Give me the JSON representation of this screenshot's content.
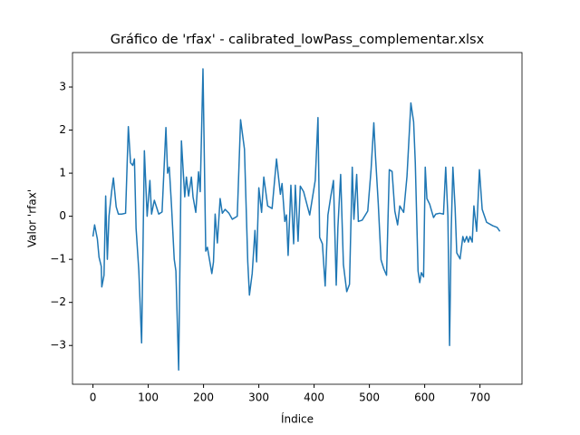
{
  "chart_data": {
    "type": "line",
    "title": "Gráfico de 'rfax' - calibrated_lowPass_complementar.xlsx",
    "x_label": "Índice",
    "y_label": "Valor 'rfax'",
    "x": [
      0,
      3,
      8,
      11,
      15,
      16,
      20,
      23,
      26,
      29,
      34,
      37,
      42,
      46,
      52,
      59,
      64,
      68,
      72,
      75,
      78,
      83,
      88,
      93,
      98,
      103,
      106,
      111,
      119,
      125,
      132,
      135,
      138,
      142,
      147,
      150,
      155,
      160,
      163,
      166,
      169,
      173,
      178,
      181,
      186,
      191,
      194,
      199,
      204,
      207,
      210,
      215,
      218,
      221,
      225,
      230,
      234,
      239,
      246,
      252,
      261,
      267,
      274,
      280,
      283,
      288,
      293,
      296,
      300,
      305,
      309,
      316,
      324,
      332,
      339,
      342,
      347,
      350,
      353,
      358,
      363,
      366,
      371,
      375,
      381,
      392,
      402,
      407,
      410,
      415,
      420,
      425,
      430,
      435,
      440,
      443,
      448,
      453,
      459,
      464,
      469,
      472,
      477,
      480,
      487,
      497,
      503,
      508,
      511,
      516,
      521,
      526,
      531,
      536,
      541,
      546,
      551,
      555,
      562,
      568,
      575,
      580,
      583,
      588,
      591,
      594,
      598,
      601,
      604,
      609,
      616,
      620,
      627,
      634,
      638,
      642,
      645,
      648,
      651,
      655,
      658,
      664,
      669,
      672,
      676,
      679,
      682,
      686,
      689,
      694,
      699,
      704,
      712,
      723,
      731,
      736
    ],
    "series": [
      {
        "name": "rfax",
        "color": "#1f77b4",
        "values": [
          -0.47,
          -0.2,
          -0.53,
          -0.95,
          -1.16,
          -1.64,
          -1.37,
          0.47,
          -1.0,
          0,
          0.6,
          0.89,
          0.22,
          0.05,
          0.05,
          0.07,
          2.08,
          1.24,
          1.18,
          1.33,
          -0.28,
          -1.27,
          -2.94,
          1.52,
          0,
          0.83,
          0.05,
          0.37,
          0.05,
          0.1,
          2.06,
          1.0,
          1.14,
          0.26,
          -1.0,
          -1.27,
          -3.57,
          1.75,
          1.1,
          0.45,
          0.91,
          0.47,
          0.91,
          0.45,
          0.09,
          1.03,
          0.57,
          3.42,
          -0.81,
          -0.72,
          -0.95,
          -1.33,
          -1.06,
          0.05,
          -0.62,
          0.41,
          0.07,
          0.16,
          0.07,
          -0.07,
          0,
          2.24,
          1.56,
          -1.06,
          -1.83,
          -1.33,
          -0.33,
          -1.06,
          0.66,
          0.09,
          0.91,
          0.24,
          0.18,
          1.33,
          0.51,
          0.76,
          -0.12,
          0.03,
          -0.91,
          0.72,
          -0.64,
          0.72,
          -0.58,
          0.7,
          0.57,
          0.03,
          0.83,
          2.29,
          -0.49,
          -0.64,
          -1.62,
          0.03,
          0.45,
          0.83,
          -1.6,
          -0.26,
          0.97,
          -1.12,
          -1.75,
          -1.58,
          1.14,
          -0.07,
          0.97,
          -0.12,
          -0.09,
          0.12,
          1.08,
          2.17,
          1.39,
          0.3,
          -1.01,
          -1.22,
          -1.37,
          1.08,
          1.04,
          0.12,
          -0.2,
          0.24,
          0.09,
          0.93,
          2.63,
          2.19,
          1.24,
          -1.27,
          -1.54,
          -1.31,
          -1.41,
          1.14,
          0.41,
          0.28,
          -0.03,
          0.05,
          0.07,
          0.05,
          1.14,
          0,
          -3.0,
          -0.32,
          1.14,
          0.2,
          -0.85,
          -0.99,
          -0.47,
          -0.6,
          -0.47,
          -0.6,
          -0.47,
          -0.6,
          0.24,
          -0.35,
          1.08,
          0.16,
          -0.14,
          -0.22,
          -0.26,
          -0.35
        ]
      }
    ],
    "xlim": [
      -37,
      776
    ],
    "xticks": [
      0,
      100,
      200,
      300,
      400,
      500,
      600,
      700
    ],
    "ylim": [
      -3.9,
      3.8
    ],
    "yticks": [
      {
        "value": -3,
        "label": "−3"
      },
      {
        "value": -2,
        "label": "−2"
      },
      {
        "value": -1,
        "label": "−1"
      },
      0,
      1,
      2,
      3
    ]
  }
}
